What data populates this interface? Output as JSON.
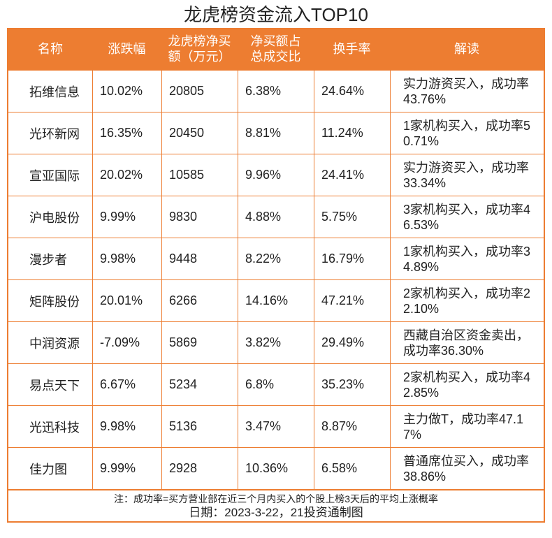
{
  "title": "龙虎榜资金流入TOP10",
  "chart_data": {
    "type": "table",
    "title": "龙虎榜资金流入TOP10",
    "columns": [
      "名称",
      "涨跌幅",
      "龙虎榜净买额（万元）",
      "净买额占总成交比",
      "换手率",
      "解读"
    ],
    "header_lines": [
      [
        "名称"
      ],
      [
        "涨跌幅"
      ],
      [
        "龙虎榜净买",
        "额（万元）"
      ],
      [
        "净买额占",
        "总成交比"
      ],
      [
        "换手率"
      ],
      [
        "解读"
      ]
    ],
    "rows": [
      [
        "拓维信息",
        "10.02%",
        "20805",
        "6.38%",
        "24.64%",
        "实力游资买入，成功率43.76%"
      ],
      [
        "光环新网",
        "16.35%",
        "20450",
        "8.81%",
        "11.24%",
        "1家机构买入，成功率50.71%"
      ],
      [
        "宣亚国际",
        "20.02%",
        "10585",
        "9.96%",
        "24.41%",
        "实力游资买入，成功率33.34%"
      ],
      [
        "沪电股份",
        "9.99%",
        "9830",
        "4.88%",
        "5.75%",
        "3家机构买入，成功率46.53%"
      ],
      [
        "漫步者",
        "9.98%",
        "9448",
        "8.22%",
        "16.79%",
        "1家机构买入，成功率34.89%"
      ],
      [
        "矩阵股份",
        "20.01%",
        "6266",
        "14.16%",
        "47.21%",
        "2家机构买入，成功率22.10%"
      ],
      [
        "中润资源",
        "-7.09%",
        "5869",
        "3.82%",
        "29.49%",
        "西藏自治区资金卖出，成功率36.30%"
      ],
      [
        "易点天下",
        "6.67%",
        "5234",
        "6.8%",
        "35.23%",
        "2家机构买入，成功率42.85%"
      ],
      [
        "光迅科技",
        "9.98%",
        "5136",
        "3.47%",
        "8.87%",
        "主力做T，成功率47.17%"
      ],
      [
        "佳力图",
        "9.99%",
        "2928",
        "10.36%",
        "6.58%",
        "普通席位买入，成功率38.86%"
      ]
    ],
    "note": "注：成功率=买方营业部在近三个月内买入的个股上榜3天后的平均上涨概率",
    "source": "日期：2023-3-22，21投资通制图"
  },
  "colors": {
    "accent": "#ED7D31"
  }
}
